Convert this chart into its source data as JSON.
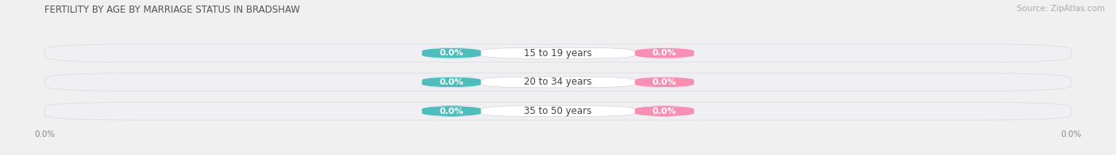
{
  "title": "FERTILITY BY AGE BY MARRIAGE STATUS IN BRADSHAW",
  "source": "Source: ZipAtlas.com",
  "categories": [
    "15 to 19 years",
    "20 to 34 years",
    "35 to 50 years"
  ],
  "married_values": [
    0.0,
    0.0,
    0.0
  ],
  "unmarried_values": [
    0.0,
    0.0,
    0.0
  ],
  "married_color": "#4dbdbd",
  "unmarried_color": "#f78fb3",
  "bar_face_color": "#f0f0f4",
  "bar_edge_color": "#dddddd",
  "background_color": "#f0f0f0",
  "label_fontsize": 8.0,
  "title_fontsize": 8.5,
  "source_fontsize": 7.5,
  "axis_label_fontsize": 7.5,
  "legend_fontsize": 8.5,
  "figsize": [
    14.06,
    1.96
  ],
  "dpi": 100
}
